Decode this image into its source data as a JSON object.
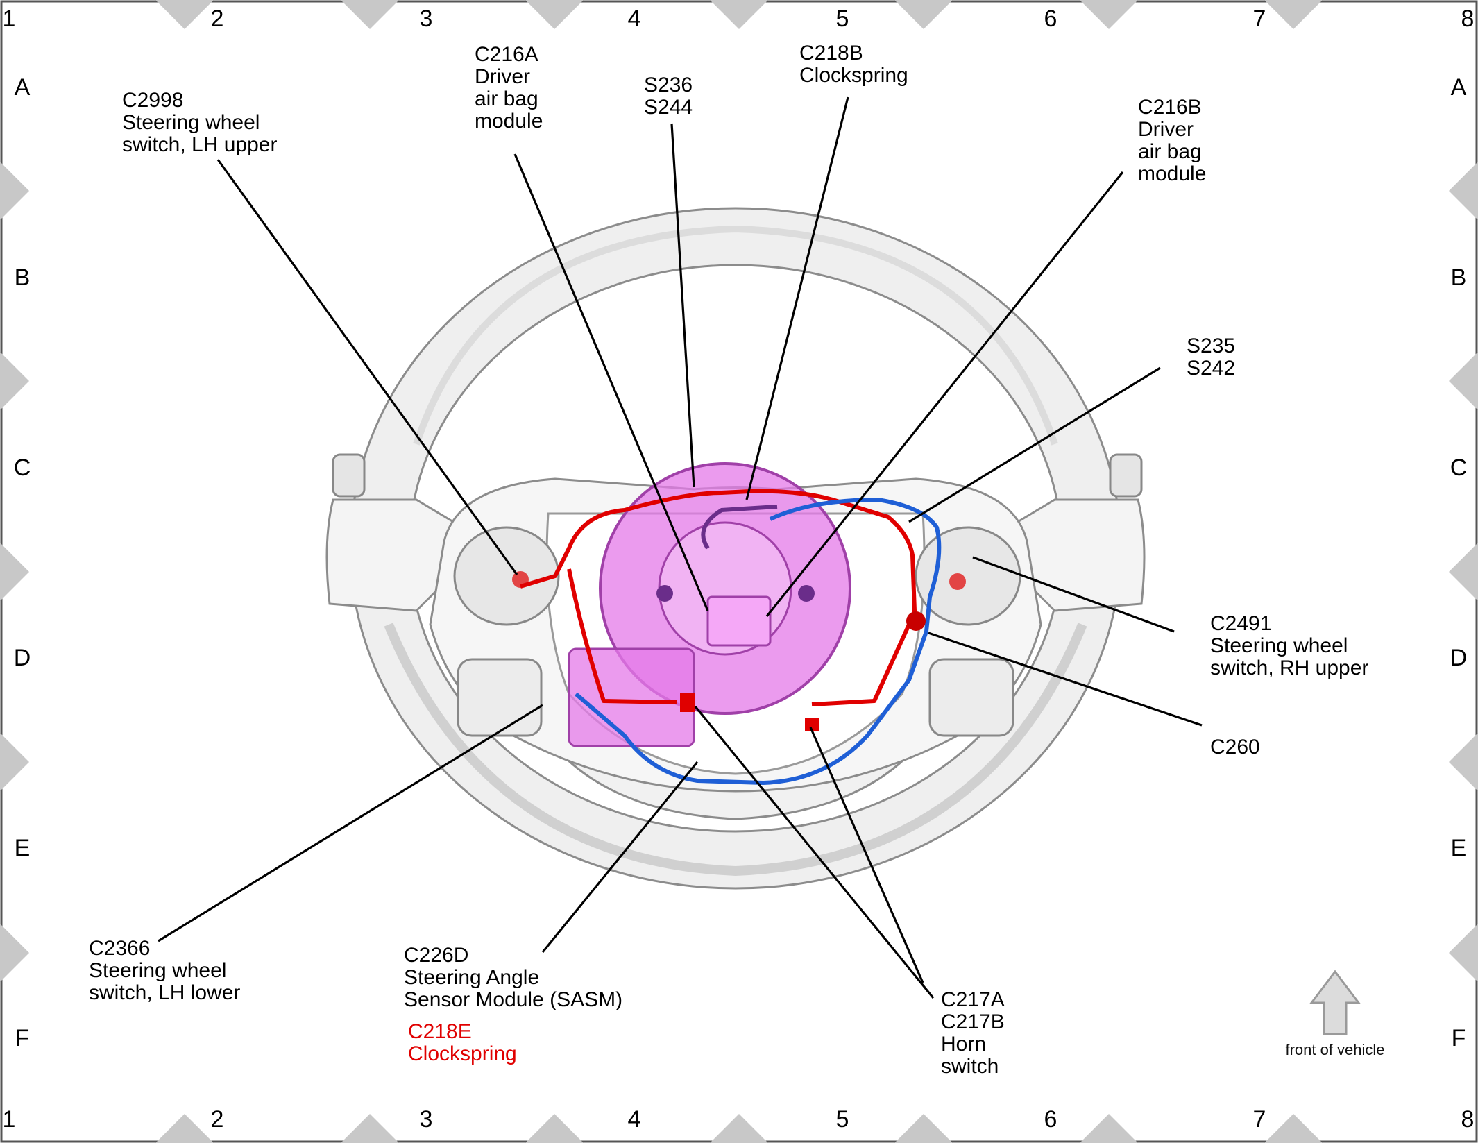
{
  "grid": {
    "columns": [
      "1",
      "2",
      "3",
      "4",
      "5",
      "6",
      "7",
      "8"
    ],
    "rows": [
      "A",
      "B",
      "C",
      "D",
      "E",
      "F"
    ]
  },
  "callouts": {
    "c2998": [
      "C2998",
      "Steering wheel",
      "switch, LH upper"
    ],
    "c216a": [
      "C216A",
      "Driver",
      "air bag",
      "module"
    ],
    "s236": [
      "S236",
      "S244"
    ],
    "c218b": [
      "C218B",
      "Clockspring"
    ],
    "c216b": [
      "C216B",
      "Driver",
      "air bag",
      "module"
    ],
    "s235": [
      "S235",
      "S242"
    ],
    "c2491": [
      "C2491",
      "Steering wheel",
      "switch, RH upper"
    ],
    "c260": [
      "C260"
    ],
    "c2366": [
      "C2366",
      "Steering wheel",
      "switch, LH lower"
    ],
    "c226d": [
      "C226D",
      "Steering Angle",
      "Sensor Module (SASM)"
    ],
    "c218e": [
      "C218E",
      "Clockspring"
    ],
    "c217": [
      "C217A",
      "C217B",
      "Horn",
      "switch"
    ]
  },
  "orientation": {
    "label": "front of vehicle",
    "icon": "up-arrow-icon"
  },
  "colors": {
    "harness_red": "#e00000",
    "harness_blue": "#1f5fd6",
    "clockspring_magenta": "#e47ae8",
    "highlight_text_red": "#e00000",
    "border_diamond": "#c8c8c8"
  }
}
